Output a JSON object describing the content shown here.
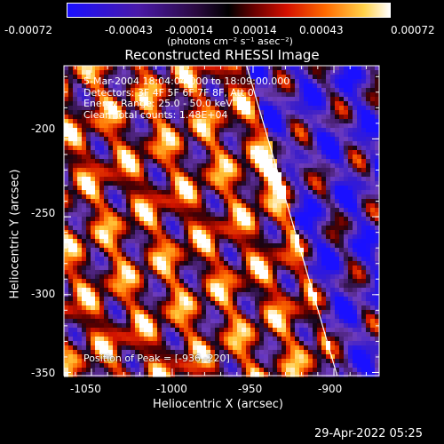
{
  "colorbar": {
    "ticks": [
      "-0.00072",
      "-0.00043",
      "-0.00014",
      "0.00014",
      "0.00043",
      "0.00072"
    ],
    "unit_label": "(photons cm⁻² s⁻¹ asec⁻²)"
  },
  "chart_data": {
    "type": "heatmap",
    "title": "Reconstructed RHESSI Image",
    "xlabel": "Heliocentric X (arcsec)",
    "ylabel": "Heliocentric Y (arcsec)",
    "xlim": [
      -1067,
      -872
    ],
    "ylim": [
      -352,
      -153
    ],
    "xticks": [
      -1050,
      -1000,
      -950,
      -900
    ],
    "yticks": [
      -200,
      -250,
      -300,
      -350
    ],
    "xtick_labels": [
      "-1050",
      "-1000",
      "-950",
      "-900"
    ],
    "ytick_labels": [
      "-200",
      "-250",
      "-300",
      "-350"
    ],
    "colormap_range": [
      -0.00072,
      0.00072
    ],
    "annotations": [
      "5-Mar-2004 18:04:04.000 to 18:09:00.000",
      "Detectors: 3F 4F 5F 6F 7F 8F, Att 0",
      "Energy Range: 25.0 - 50.0 keV",
      "Clean     Total counts: 1.48E+04"
    ],
    "peak_label": "Position of Peak = [-936,-220]",
    "peak": [
      -936,
      -220
    ],
    "limb_line": [
      [
        -954,
        -153
      ],
      [
        -898,
        -352
      ]
    ]
  },
  "footer": {
    "timestamp": "29-Apr-2022 05:25"
  }
}
